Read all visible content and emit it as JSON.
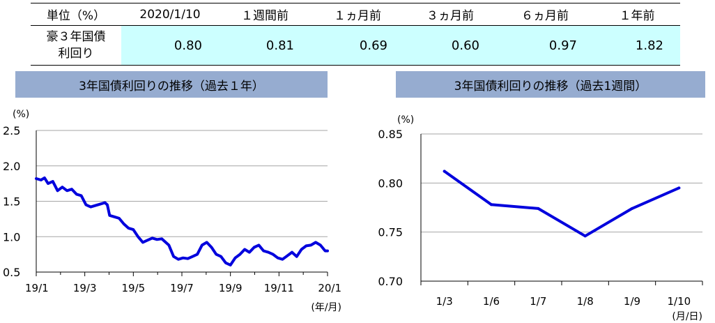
{
  "table": {
    "headers": [
      "単位（%）",
      "2020/1/10",
      "１週間前",
      "１ヵ月前",
      "３ヵ月前",
      "６ヵ月前",
      "１年前"
    ],
    "row_label_line1": "豪３年国債",
    "row_label_line2": "利回り",
    "values": [
      "0.80",
      "0.81",
      "0.69",
      "0.60",
      "0.97",
      "1.82"
    ]
  },
  "chart_data": [
    {
      "type": "line",
      "title": "3年国債利回りの推移（過去１年）",
      "ylabel": "(%)",
      "xlabel": "(年/月)",
      "ylim": [
        0.5,
        2.5
      ],
      "yticks": [
        "0.5",
        "1.0",
        "1.5",
        "2.0",
        "2.5"
      ],
      "xticks": [
        "19/1",
        "19/3",
        "19/5",
        "19/7",
        "19/9",
        "19/11",
        "20/1"
      ],
      "grid": true,
      "color": "#0000dd",
      "x": [
        0,
        0.2,
        0.35,
        0.5,
        0.7,
        0.9,
        1.1,
        1.3,
        1.5,
        1.7,
        1.9,
        2.1,
        2.3,
        2.5,
        2.7,
        2.9,
        3.0,
        3.1,
        3.3,
        3.5,
        3.7,
        3.9,
        4.1,
        4.3,
        4.5,
        4.7,
        4.9,
        5.1,
        5.3,
        5.6,
        5.8,
        6.0,
        6.2,
        6.4,
        6.6,
        6.8,
        7.0,
        7.2,
        7.4,
        7.6,
        7.8,
        8.0,
        8.2,
        8.4,
        8.6,
        8.8,
        9.0,
        9.2,
        9.4,
        9.6,
        9.8,
        10.0,
        10.2,
        10.4,
        10.6,
        10.8,
        11.0,
        11.2,
        11.4,
        11.6,
        11.8,
        12.0,
        12.2,
        12.35
      ],
      "y": [
        1.82,
        1.8,
        1.83,
        1.75,
        1.78,
        1.65,
        1.7,
        1.65,
        1.67,
        1.6,
        1.58,
        1.45,
        1.42,
        1.44,
        1.46,
        1.48,
        1.45,
        1.3,
        1.28,
        1.26,
        1.18,
        1.12,
        1.1,
        1.0,
        0.92,
        0.95,
        0.98,
        0.96,
        0.97,
        0.88,
        0.72,
        0.68,
        0.7,
        0.69,
        0.72,
        0.75,
        0.88,
        0.92,
        0.85,
        0.75,
        0.72,
        0.63,
        0.6,
        0.7,
        0.75,
        0.82,
        0.78,
        0.85,
        0.88,
        0.8,
        0.78,
        0.75,
        0.7,
        0.68,
        0.73,
        0.78,
        0.72,
        0.82,
        0.87,
        0.88,
        0.92,
        0.88,
        0.8,
        0.8
      ]
    },
    {
      "type": "line",
      "title": "3年国債利回りの推移（過去1週間）",
      "ylabel": "(%)",
      "xlabel": "(月/日)",
      "ylim": [
        0.7,
        0.85
      ],
      "yticks": [
        "0.70",
        "0.75",
        "0.80",
        "0.85"
      ],
      "categories": [
        "1/3",
        "1/6",
        "1/7",
        "1/8",
        "1/9",
        "1/10"
      ],
      "values": [
        0.812,
        0.778,
        0.774,
        0.746,
        0.774,
        0.795
      ],
      "grid": true,
      "color": "#0000dd"
    }
  ]
}
